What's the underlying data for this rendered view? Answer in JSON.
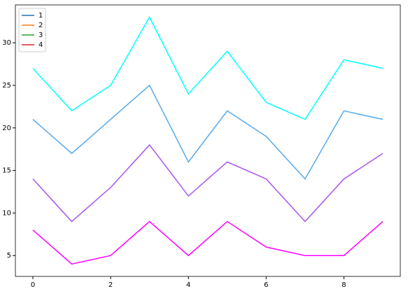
{
  "chart_data": {
    "type": "line",
    "x": [
      0,
      1,
      2,
      3,
      4,
      5,
      6,
      7,
      8,
      9
    ],
    "series": [
      {
        "name": "1",
        "color": "#ff00ff",
        "legend_color": "#1f77b4",
        "values": [
          8,
          4,
          5,
          9,
          5,
          9,
          6,
          5,
          5,
          9
        ]
      },
      {
        "name": "2",
        "color": "#aa55ee",
        "legend_color": "#ff7f0e",
        "values": [
          14,
          9,
          13,
          18,
          12,
          16,
          14,
          9,
          14,
          17
        ]
      },
      {
        "name": "3",
        "color": "#55aaee",
        "legend_color": "#2ca02c",
        "values": [
          21,
          17,
          21,
          25,
          16,
          22,
          19,
          14,
          22,
          21
        ]
      },
      {
        "name": "4",
        "color": "#00ffff",
        "legend_color": "#d62728",
        "values": [
          27,
          22,
          25,
          33,
          24,
          29,
          23,
          21,
          28,
          27
        ]
      }
    ],
    "xlim": [
      -0.45,
      9.45
    ],
    "ylim": [
      2.55,
      34.45
    ],
    "xticks": [
      0,
      2,
      4,
      6,
      8
    ],
    "yticks": [
      5,
      10,
      15,
      20,
      25,
      30
    ],
    "legend": "upper left"
  }
}
